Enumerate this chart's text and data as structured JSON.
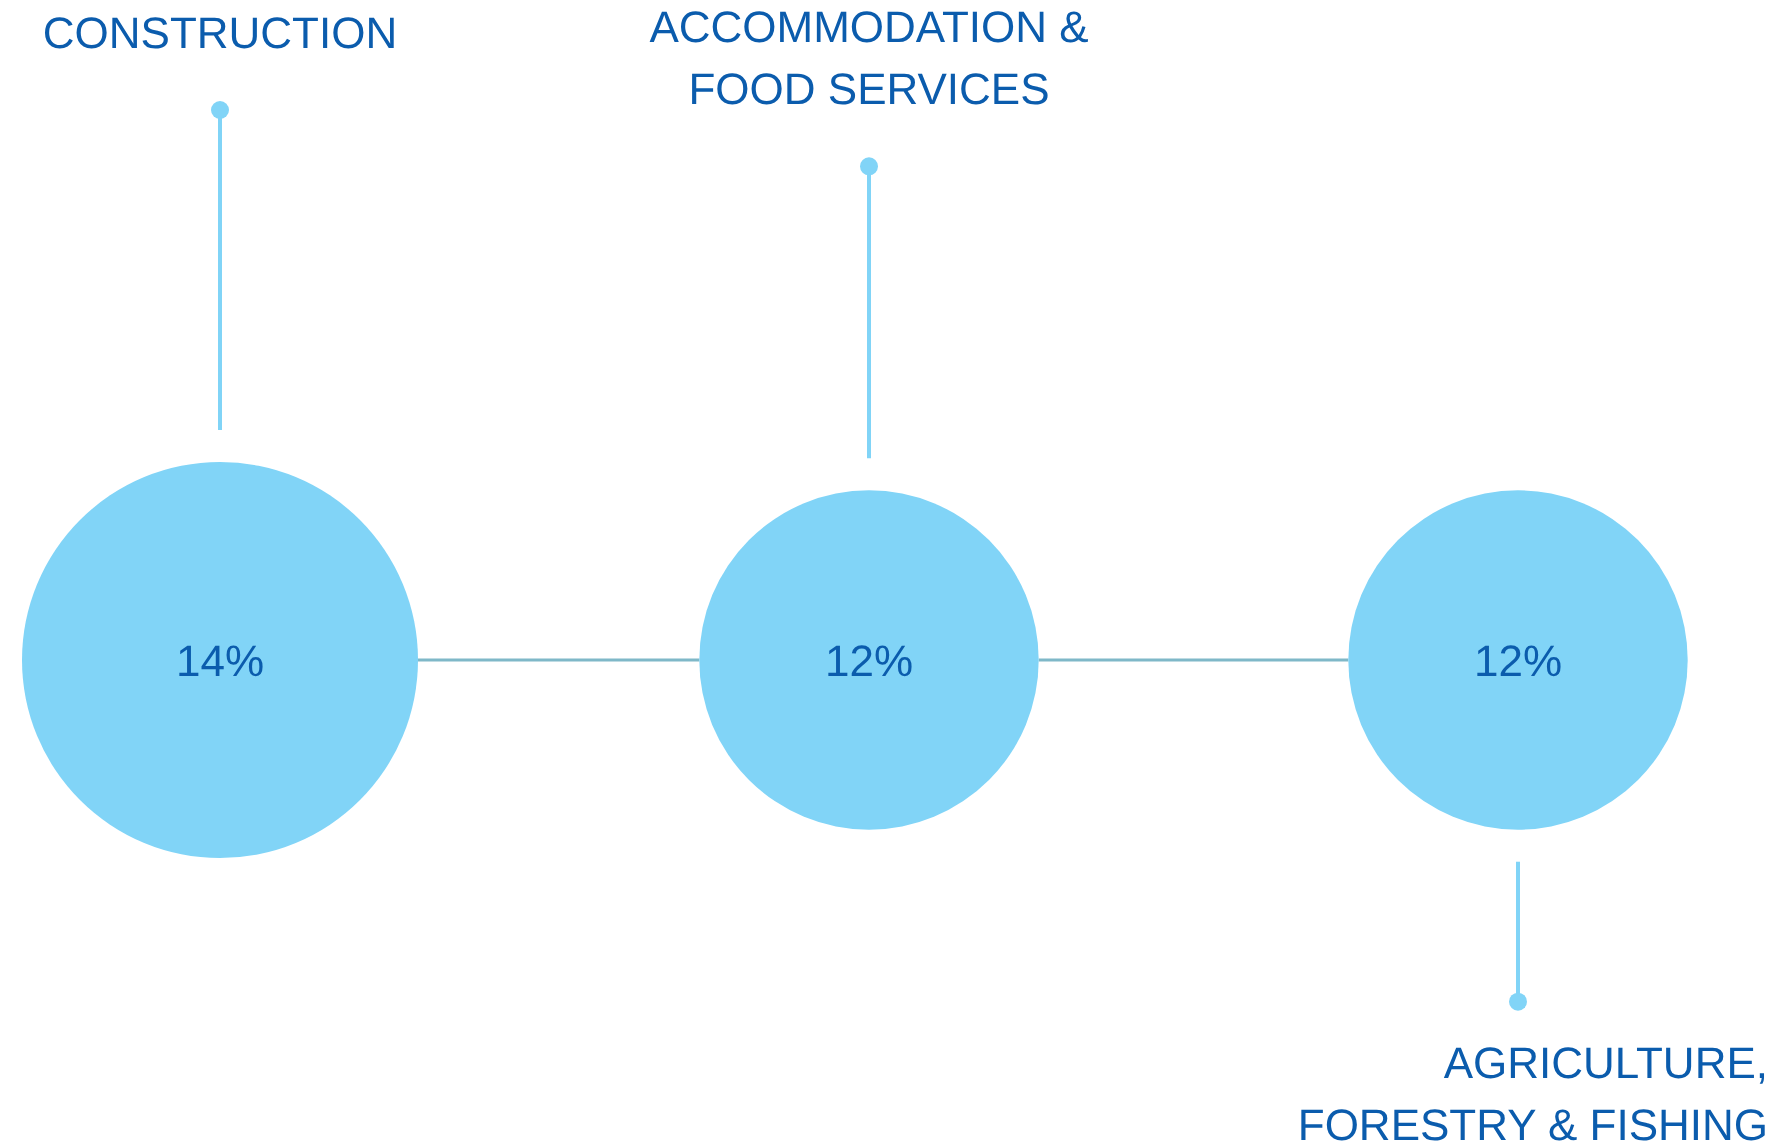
{
  "chart_data": {
    "type": "other",
    "categories": [
      "CONSTRUCTION",
      "ACCOMMODATION & FOOD SERVICES",
      "AGRICULTURE, FORESTRY & FISHING"
    ],
    "values": [
      14,
      12,
      12
    ],
    "value_labels": [
      "14%",
      "12%",
      "12%"
    ],
    "color": "#81d4f7"
  }
}
